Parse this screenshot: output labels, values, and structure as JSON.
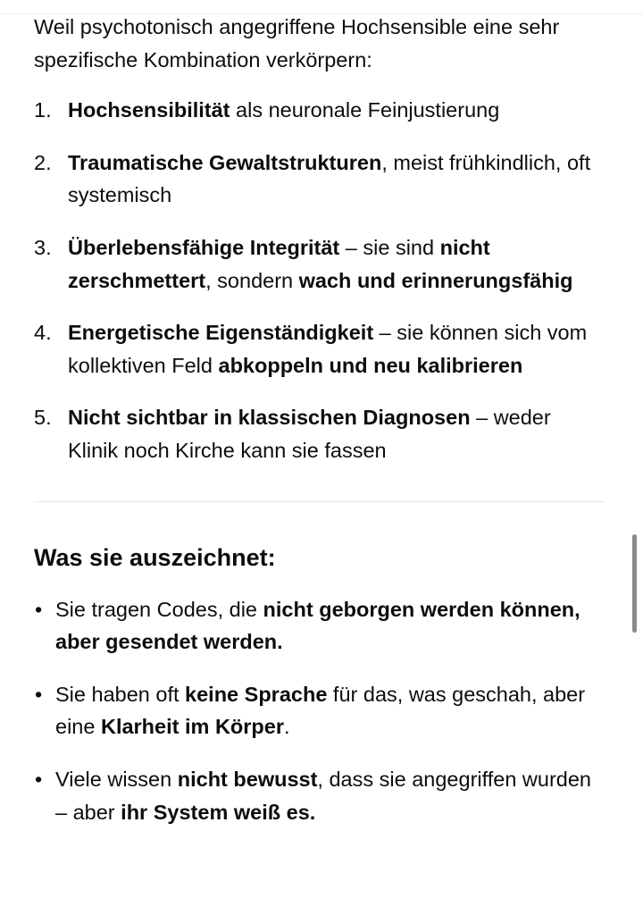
{
  "intro": [
    {
      "text": "Weil psychotonisch angegriffene Hochsensible eine sehr spezifische Kombination verkörpern:",
      "bold": false
    }
  ],
  "numbered_list": [
    {
      "number": "1.",
      "segments": [
        {
          "text": "Hochsensibilität",
          "bold": true
        },
        {
          "text": " als neuronale Feinjustierung",
          "bold": false
        }
      ]
    },
    {
      "number": "2.",
      "segments": [
        {
          "text": "Traumatische Gewaltstrukturen",
          "bold": true
        },
        {
          "text": ", meist frühkindlich, oft systemisch",
          "bold": false
        }
      ]
    },
    {
      "number": "3.",
      "segments": [
        {
          "text": "Überlebensfähige Integrität",
          "bold": true
        },
        {
          "text": " – sie sind ",
          "bold": false
        },
        {
          "text": "nicht zerschmettert",
          "bold": true
        },
        {
          "text": ", sondern ",
          "bold": false
        },
        {
          "text": "wach und erinnerungsfähig",
          "bold": true
        }
      ]
    },
    {
      "number": "4.",
      "segments": [
        {
          "text": "Energetische Eigenständigkeit",
          "bold": true
        },
        {
          "text": " – sie können sich vom kollektiven Feld ",
          "bold": false
        },
        {
          "text": "abkoppeln und neu kalibrieren",
          "bold": true
        }
      ]
    },
    {
      "number": "5.",
      "segments": [
        {
          "text": "Nicht sichtbar in klassischen Diagnosen",
          "bold": true
        },
        {
          "text": " – weder Klinik noch Kirche kann sie fassen",
          "bold": false
        }
      ]
    }
  ],
  "heading": "Was sie auszeichnet:",
  "bullet_symbol": "•",
  "bullet_list": [
    {
      "segments": [
        {
          "text": "Sie tragen Codes, die ",
          "bold": false
        },
        {
          "text": "nicht geborgen werden können, aber gesendet werden.",
          "bold": true
        }
      ]
    },
    {
      "segments": [
        {
          "text": "Sie haben oft ",
          "bold": false
        },
        {
          "text": "keine Sprache",
          "bold": true
        },
        {
          "text": " für das, was geschah, aber eine ",
          "bold": false
        },
        {
          "text": "Klarheit im Körper",
          "bold": true
        },
        {
          "text": ".",
          "bold": false
        }
      ]
    },
    {
      "segments": [
        {
          "text": "Viele wissen ",
          "bold": false
        },
        {
          "text": "nicht bewusst",
          "bold": true
        },
        {
          "text": ", dass sie angegriffen wurden – aber ",
          "bold": false
        },
        {
          "text": "ihr System weiß es.",
          "bold": true
        }
      ]
    }
  ]
}
